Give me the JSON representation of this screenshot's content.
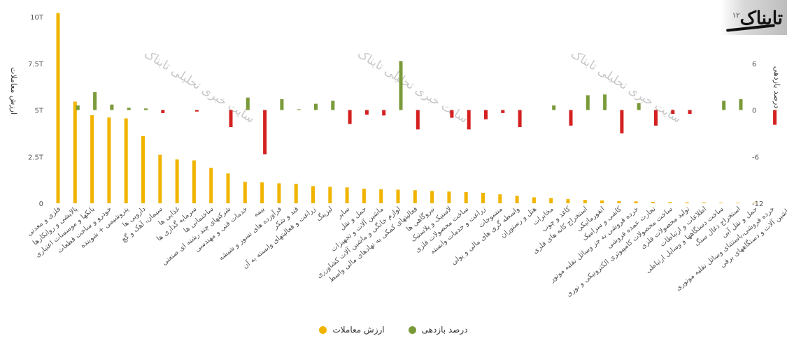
{
  "chart_data": {
    "type": "bar",
    "categories": [
      "فلزی و معدنی",
      "پالایشی و روانکارها",
      "بانکها و موسسات اعتباری",
      "خودرو و ساخت قطعات",
      "پتروشیمی + شوینده",
      "دارویی ها",
      "سیمان، آهک و گچ",
      "غذایی ها",
      "سرمایه گذاری ها",
      "ساختمانی ها",
      "شرکتهای چند رشته ای صنعتی",
      "خدمات فنی و مهندسی",
      "بیمه",
      "فرآورده های نسوز و شیشه",
      "قند و شکر",
      "زراعت و فعالیتهای وابسته به آن",
      "لیزینگ",
      "سایر",
      "حمل و نقل",
      "ماشین آلات و تجهیزات",
      "لوازم خانگی و ماشین آلات کشاورزی",
      "فعالیتهای کمکی به نهادهای مالی واسط",
      "نیروگاهی ها",
      "لاستیک و پلاستیک",
      "ساخت محصولات فلزی",
      "زراعت و خدمات وابسته",
      "منسوجات",
      "واسطه گری های مالی و پولی",
      "هتل و رستوران",
      "مخابرات",
      "کاغذ و چوب",
      "استخراج کانه های فلزی",
      "انفورماتیکی",
      "کاشی و سرامیک",
      "خرده فروشی به جز وسائل نقلیه موتور",
      "تجارت عمده فروشی",
      "ساخت محصولات کامپیوتری الکترونیکی و نوری",
      "تولید محصولات فلزی",
      "اطلاعات و ارتباطات",
      "ساخت دستگاهها و وسایل ارتباطی",
      "استخراج ذغال سنگ",
      "حمل و نقل آبی",
      "خرده فروشی،باستثنای وسائل نقلیه موتوری",
      "ماشین آلات و دستگاههای برقی"
    ],
    "series": [
      {
        "name": "ارزش معاملات",
        "color": "#f0b400",
        "axis": "left",
        "values": [
          10.2,
          5.45,
          4.72,
          4.6,
          4.55,
          3.6,
          2.6,
          2.35,
          2.3,
          1.9,
          1.6,
          1.15,
          1.12,
          1.07,
          1.05,
          0.92,
          0.88,
          0.85,
          0.78,
          0.75,
          0.73,
          0.7,
          0.66,
          0.63,
          0.6,
          0.56,
          0.48,
          0.4,
          0.32,
          0.28,
          0.22,
          0.18,
          0.15,
          0.12,
          0.1,
          0.08,
          0.06,
          0.05,
          0.04,
          0.03,
          0.02,
          0.01,
          0.0,
          0.0
        ]
      },
      {
        "name": "درصد بازدهی",
        "color": "#7a9a3a",
        "color_negative": "#d42020",
        "axis": "right",
        "values": [
          0.0,
          0.6,
          2.3,
          0.7,
          0.3,
          0.2,
          -0.4,
          0.0,
          -0.2,
          0.0,
          -2.2,
          1.6,
          -5.7,
          1.4,
          0.1,
          0.8,
          1.2,
          -1.8,
          -0.6,
          -0.7,
          6.3,
          -2.5,
          0.0,
          -1.0,
          -2.5,
          -1.2,
          -0.4,
          -2.2,
          0.0,
          0.6,
          -2.0,
          1.9,
          2.0,
          -3.0,
          0.9,
          -2.0,
          -0.5,
          -0.5,
          0.0,
          1.2,
          1.4,
          0.0,
          -1.9,
          -3.9
        ]
      }
    ],
    "left_axis": {
      "label": "ارزش معاملات",
      "ticks": [
        0,
        2.5,
        5,
        7.5,
        10
      ],
      "tick_labels": [
        "0",
        "2.5T",
        "5T",
        "7.5T",
        "10T"
      ],
      "range": [
        0,
        10
      ]
    },
    "right_axis": {
      "label": "درصد بازدهی",
      "ticks": [
        -12,
        -6,
        0,
        6
      ],
      "tick_labels": [
        "-12",
        "-6",
        "0",
        "6"
      ],
      "range": [
        -12,
        12
      ]
    },
    "grid": false,
    "legend_position": "bottom-center",
    "watermark": "سایت خبری تحلیلی تابناک"
  },
  "logo": {
    "text": "تابناک",
    "superscript": "١٢"
  }
}
